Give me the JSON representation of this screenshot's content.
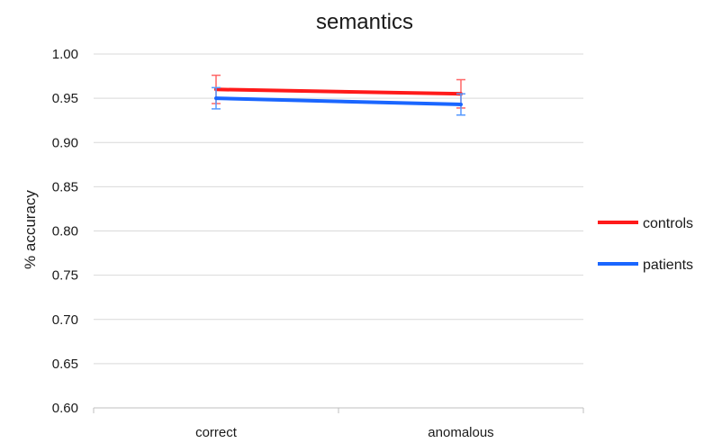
{
  "chart_data": {
    "type": "line",
    "title": "semantics",
    "xlabel": "",
    "ylabel": "% accuracy",
    "categories": [
      "correct",
      "anomalous"
    ],
    "ylim": [
      0.6,
      1.0
    ],
    "yticks": [
      "0.60",
      "0.65",
      "0.70",
      "0.75",
      "0.80",
      "0.85",
      "0.90",
      "0.95",
      "1.00"
    ],
    "grid": true,
    "legend_position": "right",
    "series": [
      {
        "name": "controls",
        "color": "#ff1a1a",
        "errcolor": "#ff6666",
        "values": [
          0.96,
          0.955
        ],
        "errors": [
          0.016,
          0.016
        ]
      },
      {
        "name": "patients",
        "color": "#1a66ff",
        "errcolor": "#5599ff",
        "values": [
          0.95,
          0.943
        ],
        "errors": [
          0.012,
          0.012
        ]
      }
    ]
  }
}
